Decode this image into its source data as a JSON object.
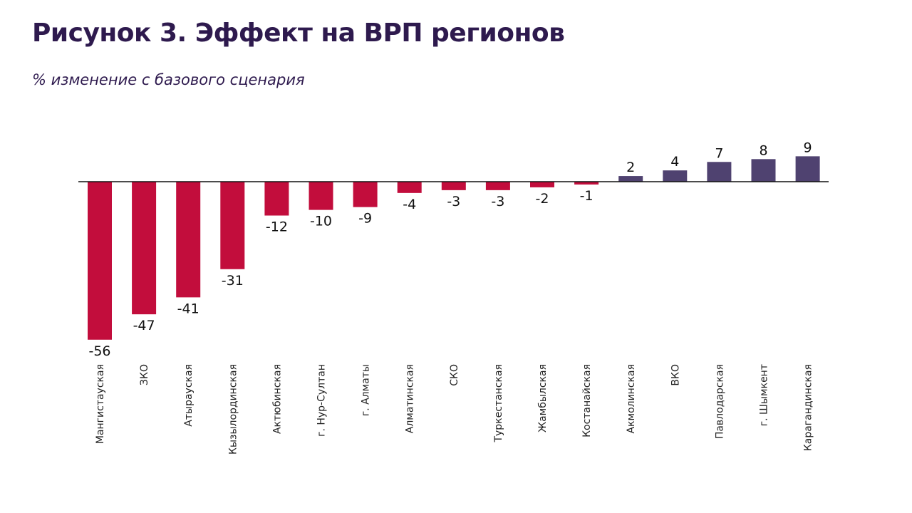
{
  "header": {
    "title": "Рисунок 3. Эффект на ВРП регионов",
    "subtitle": "% изменение с базового сценария"
  },
  "colors": {
    "negative": "#C20D3C",
    "positive": "#4F4270",
    "title": "#2E1A4E",
    "axis": "#111111"
  },
  "chart_data": {
    "type": "bar",
    "title": "Рисунок 3. Эффект на ВРП регионов",
    "subtitle": "% изменение с базового сценария",
    "xlabel": "",
    "ylabel": "% изменение с базового сценария",
    "categories": [
      "Мангистауская",
      "ЗКО",
      "Атырауская",
      "Кызылординская",
      "Актюбинская",
      "г. Нур-Султан",
      "г. Алматы",
      "Алматинская",
      "СКО",
      "Туркестанская",
      "Жамбылская",
      "Костанайская",
      "Акмолинская",
      "ВКО",
      "Павлодарская",
      "г. Шымкент",
      "Карагандинская"
    ],
    "values": [
      -56,
      -47,
      -41,
      -31,
      -12,
      -10,
      -9,
      -4,
      -3,
      -3,
      -2,
      -1,
      2,
      4,
      7,
      8,
      9
    ],
    "data_labels": [
      "-56",
      "-47",
      "-41",
      "-31",
      "-12",
      "-10",
      "-9",
      "-4",
      "-3",
      "-3",
      "-2",
      "-1",
      "2",
      "4",
      "7",
      "8",
      "9"
    ],
    "ylim": [
      -56,
      9
    ],
    "grid": false,
    "legend": "none",
    "x_tick_rotation": "vertical"
  }
}
